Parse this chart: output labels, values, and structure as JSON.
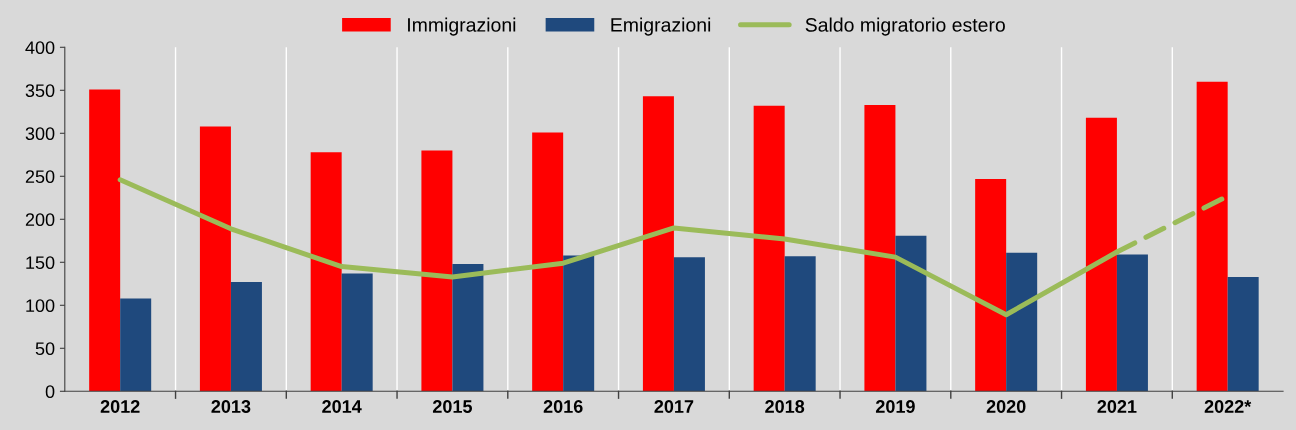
{
  "chart_data": {
    "type": "bar",
    "categories": [
      "2012",
      "2013",
      "2014",
      "2015",
      "2016",
      "2017",
      "2018",
      "2019",
      "2020",
      "2021",
      "2022*"
    ],
    "series": [
      {
        "name": "Immigrazioni",
        "color": "#ff0000",
        "values": [
          351,
          308,
          278,
          280,
          301,
          343,
          332,
          333,
          247,
          318,
          360
        ]
      },
      {
        "name": "Emigrazioni",
        "color": "#1f497d",
        "values": [
          108,
          127,
          137,
          148,
          158,
          156,
          157,
          181,
          161,
          159,
          133
        ]
      },
      {
        "name": "Saldo migratorio estero",
        "type": "line",
        "color": "#9bbb59",
        "line_style": "solid",
        "values": [
          246,
          189,
          145,
          133,
          149,
          190,
          177,
          156,
          89,
          162,
          null
        ]
      },
      {
        "type": "line",
        "color": "#9bbb59",
        "line_style": "dashed",
        "values": [
          null,
          null,
          null,
          null,
          null,
          null,
          null,
          null,
          null,
          162,
          227
        ]
      }
    ],
    "ylim": [
      0,
      400
    ],
    "yticks": [
      0,
      50,
      100,
      150,
      200,
      250,
      300,
      350,
      400
    ],
    "grid": "x",
    "legend": "top",
    "marker": "none"
  }
}
